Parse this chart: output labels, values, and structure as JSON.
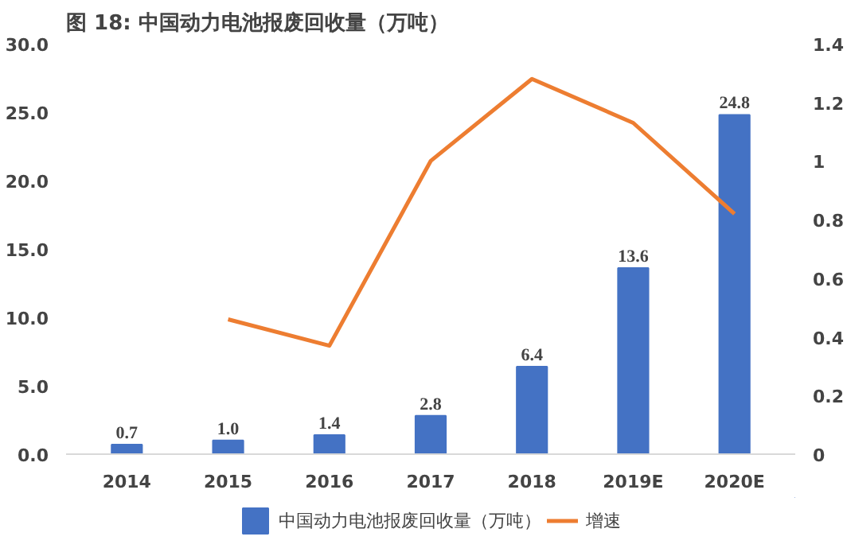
{
  "chart_data": {
    "type": "bar",
    "title": "图 18:  中国动力电池报废回收量（万吨）",
    "categories": [
      "2014",
      "2015",
      "2016",
      "2017",
      "2018",
      "2019E",
      "2020E"
    ],
    "series": [
      {
        "name": "中国动力电池报废回收量（万吨）",
        "color": "#4472c4",
        "values": [
          0.7,
          1.0,
          1.4,
          2.8,
          6.4,
          13.6,
          24.8
        ],
        "value_labels": [
          "0.7",
          "1.0",
          "1.4",
          "2.8",
          "6.4",
          "13.6",
          "24.8"
        ]
      },
      {
        "name": "增速",
        "type": "line",
        "axis": "y2",
        "color": "#ed7d31",
        "values": [
          null,
          0.46,
          0.37,
          1.0,
          1.28,
          1.13,
          0.82
        ]
      }
    ],
    "ylim": [
      0,
      30
    ],
    "yticks": [
      {
        "value": 0,
        "label": "0.0"
      },
      {
        "value": 5,
        "label": "5.0"
      },
      {
        "value": 10,
        "label": "10.0"
      },
      {
        "value": 15,
        "label": "15.0"
      },
      {
        "value": 20,
        "label": "20.0"
      },
      {
        "value": 25,
        "label": "25.0"
      },
      {
        "value": 30,
        "label": "30.0"
      }
    ],
    "y2lim": [
      0,
      1.4
    ],
    "y2ticks": [
      0,
      0.2,
      0.4,
      0.6,
      0.8,
      1,
      1.2,
      1.4
    ],
    "legend": "bottom",
    "grid": false
  }
}
